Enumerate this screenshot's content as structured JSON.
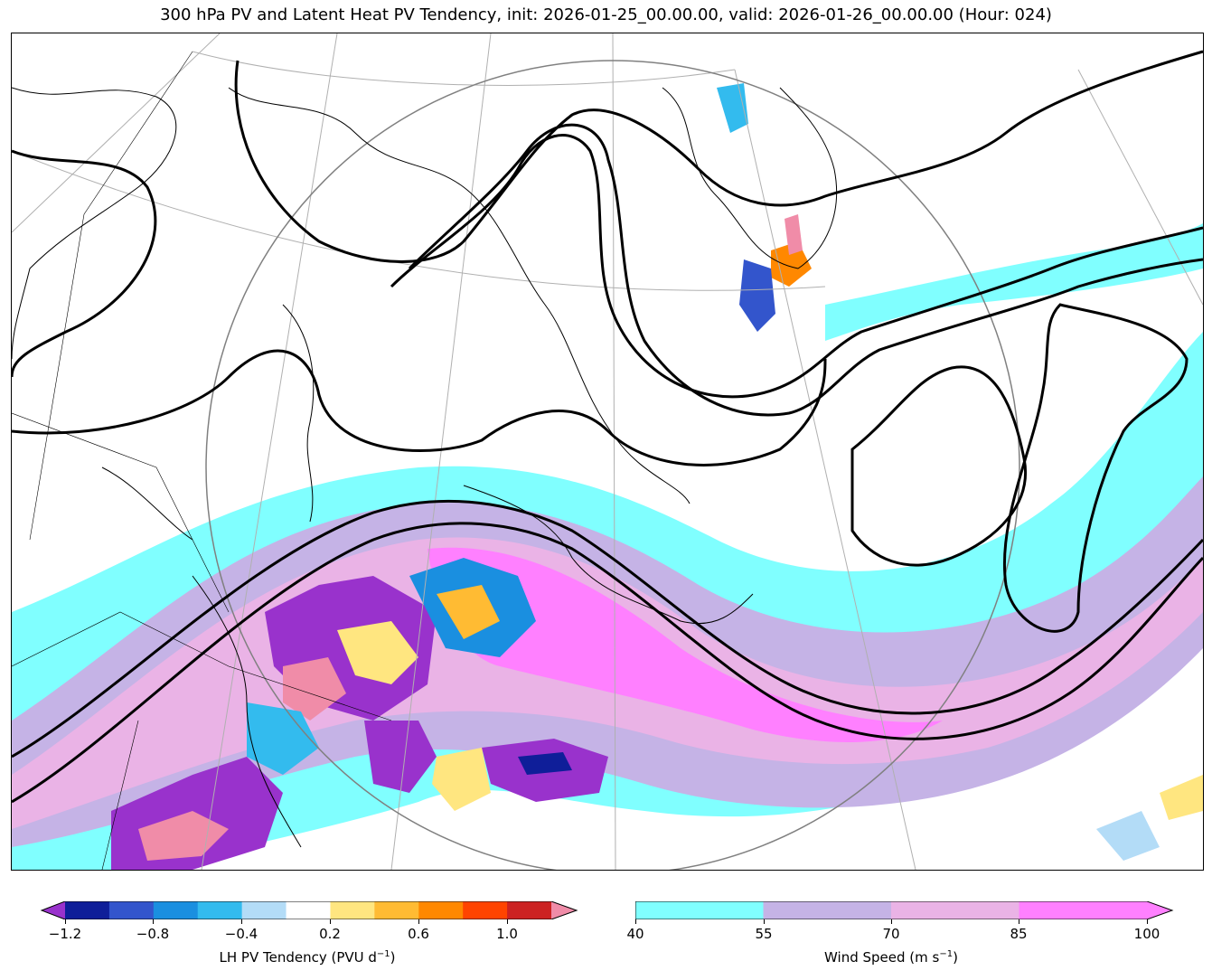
{
  "title": "300 hPa PV and Latent Heat PV Tendency, init: 2026-01-25_00.00.00, valid: 2026-01-26_00.00.00 (Hour: 024)",
  "lh_colorbar": {
    "label_text": "LH PV Tendency (PVU d",
    "label_exp": "−1",
    "label_close": ")",
    "colors": [
      "#9932cc",
      "#0f1e99",
      "#3355cc",
      "#1a8fe0",
      "#33bbee",
      "#b3dcf7",
      "#ffffff",
      "#ffe680",
      "#ffbb33",
      "#ff8800",
      "#ff4400",
      "#cc2222",
      "#f08ca8"
    ],
    "ticks": [
      "−1.2",
      "−0.8",
      "−0.4",
      "0.2",
      "0.6",
      "1.0"
    ]
  },
  "wind_colorbar": {
    "label_text": "Wind Speed (m s",
    "label_exp": "−1",
    "label_close": ")",
    "colors": [
      "#80ffff",
      "#c5b3e6",
      "#eab3e6",
      "#ff80ff"
    ],
    "ticks": [
      "40",
      "55",
      "70",
      "85",
      "100"
    ]
  }
}
